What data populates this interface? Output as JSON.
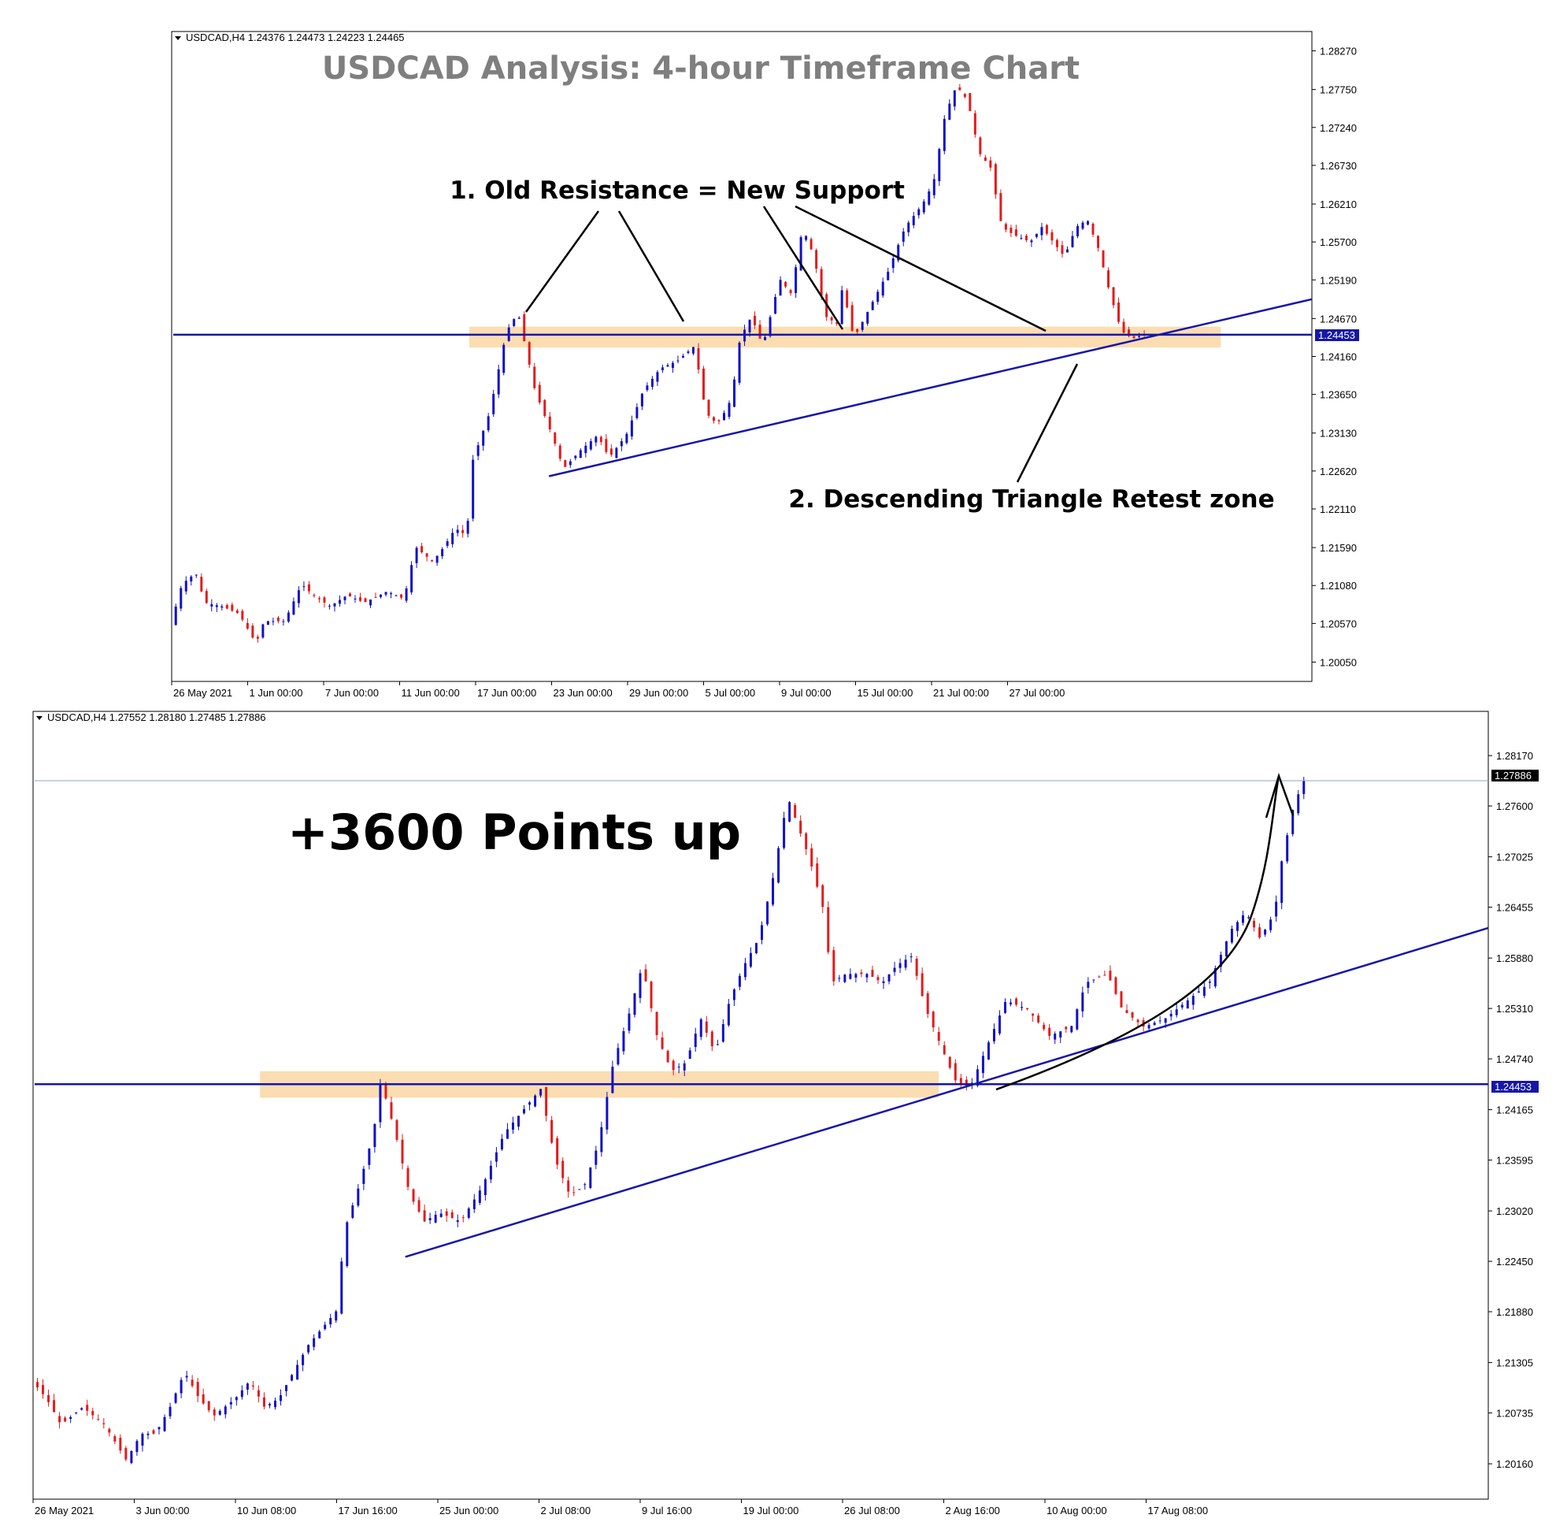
{
  "chart_data": [
    {
      "type": "candlestick",
      "title": "USDCAD Analysis: 4-hour Timeframe Chart",
      "symbol_header": "USDCAD,H4  1.24376 1.24473 1.24223 1.24465",
      "ylim": [
        1.1979,
        1.2853
      ],
      "yticks": [
        "1.28270",
        "1.27750",
        "1.27240",
        "1.26730",
        "1.26210",
        "1.25700",
        "1.25190",
        "1.24670",
        "1.24160",
        "1.23650",
        "1.23130",
        "1.22620",
        "1.22110",
        "1.21590",
        "1.21080",
        "1.20570",
        "1.20050"
      ],
      "xticks": [
        "26 May 2021",
        "1 Jun 00:00",
        "7 Jun 00:00",
        "11 Jun 00:00",
        "17 Jun 00:00",
        "23 Jun 00:00",
        "29 Jun 00:00",
        "5 Jul 00:00",
        "9 Jul 00:00",
        "15 Jul 00:00",
        "21 Jul 00:00",
        "27 Jul 00:00"
      ],
      "xlim": [
        0,
        1
      ],
      "price_label": "1.24453",
      "horizontal_level": 1.24453,
      "zone": [
        1.2428,
        1.2456
      ],
      "trendline": {
        "x": [
          0.33,
          1.0
        ],
        "y": [
          1.2255,
          1.2493
        ]
      },
      "annotations": [
        "1. Old Resistance = New Support",
        "2. Descending Triangle Retest zone"
      ],
      "close_path": [
        [
          0.0,
          1.2055
        ],
        [
          0.01,
          1.211
        ],
        [
          0.022,
          1.2125
        ],
        [
          0.03,
          1.2085
        ],
        [
          0.045,
          1.208
        ],
        [
          0.06,
          1.207
        ],
        [
          0.075,
          1.203
        ],
        [
          0.082,
          1.206
        ],
        [
          0.1,
          1.206
        ],
        [
          0.115,
          1.211
        ],
        [
          0.125,
          1.2095
        ],
        [
          0.14,
          1.208
        ],
        [
          0.155,
          1.2095
        ],
        [
          0.17,
          1.2085
        ],
        [
          0.19,
          1.21
        ],
        [
          0.205,
          1.209
        ],
        [
          0.215,
          1.216
        ],
        [
          0.23,
          1.214
        ],
        [
          0.24,
          1.216
        ],
        [
          0.25,
          1.2185
        ],
        [
          0.26,
          1.2175
        ],
        [
          0.265,
          1.2275
        ],
        [
          0.28,
          1.234
        ],
        [
          0.295,
          1.245
        ],
        [
          0.305,
          1.2475
        ],
        [
          0.32,
          1.237
        ],
        [
          0.335,
          1.231
        ],
        [
          0.345,
          1.2265
        ],
        [
          0.36,
          1.229
        ],
        [
          0.375,
          1.231
        ],
        [
          0.385,
          1.228
        ],
        [
          0.4,
          1.231
        ],
        [
          0.415,
          1.237
        ],
        [
          0.43,
          1.24
        ],
        [
          0.445,
          1.241
        ],
        [
          0.46,
          1.243
        ],
        [
          0.47,
          1.234
        ],
        [
          0.48,
          1.2325
        ],
        [
          0.49,
          1.235
        ],
        [
          0.495,
          1.2385
        ],
        [
          0.5,
          1.244
        ],
        [
          0.51,
          1.247
        ],
        [
          0.52,
          1.243
        ],
        [
          0.535,
          1.252
        ],
        [
          0.545,
          1.25
        ],
        [
          0.555,
          1.259
        ],
        [
          0.565,
          1.255
        ],
        [
          0.575,
          1.247
        ],
        [
          0.585,
          1.246
        ],
        [
          0.59,
          1.251
        ],
        [
          0.6,
          1.244
        ],
        [
          0.61,
          1.247
        ],
        [
          0.62,
          1.25
        ],
        [
          0.63,
          1.253
        ],
        [
          0.645,
          1.259
        ],
        [
          0.66,
          1.262
        ],
        [
          0.67,
          1.265
        ],
        [
          0.68,
          1.274
        ],
        [
          0.69,
          1.278
        ],
        [
          0.7,
          1.276
        ],
        [
          0.71,
          1.269
        ],
        [
          0.72,
          1.267
        ],
        [
          0.73,
          1.259
        ],
        [
          0.74,
          1.258
        ],
        [
          0.755,
          1.257
        ],
        [
          0.765,
          1.259
        ],
        [
          0.775,
          1.257
        ],
        [
          0.785,
          1.255
        ],
        [
          0.795,
          1.259
        ],
        [
          0.805,
          1.26
        ],
        [
          0.815,
          1.256
        ],
        [
          0.825,
          1.25
        ],
        [
          0.835,
          1.245
        ],
        [
          0.845,
          1.244
        ],
        [
          0.855,
          1.2446
        ]
      ]
    },
    {
      "type": "candlestick",
      "title": "",
      "symbol_header": "USDCAD,H4  1.27552 1.28180 1.27485 1.27886",
      "ylim": [
        1.1976,
        1.2867
      ],
      "yticks": [
        "1.28170",
        "1.27600",
        "1.27025",
        "1.26455",
        "1.25880",
        "1.25310",
        "1.24740",
        "1.24165",
        "1.23595",
        "1.23020",
        "1.22450",
        "1.21880",
        "1.21305",
        "1.20735",
        "1.20160"
      ],
      "xticks": [
        "26 May 2021",
        "3 Jun 00:00",
        "10 Jun 08:00",
        "17 Jun 16:00",
        "25 Jun 00:00",
        "2 Jul 08:00",
        "9 Jul 16:00",
        "19 Jul 00:00",
        "26 Jul 08:00",
        "2 Aug 16:00",
        "10 Aug 00:00",
        "17 Aug 08:00"
      ],
      "xlim": [
        0,
        1
      ],
      "price_label": "1.27886",
      "current_price": 1.27886,
      "support_label": "1.24453",
      "horizontal_level": 1.24453,
      "zone": [
        1.243,
        1.246
      ],
      "trendline": {
        "x": [
          0.255,
          1.0
        ],
        "y": [
          1.225,
          1.2622
        ]
      },
      "annotations": [
        "+3600 Points up"
      ],
      "close_path": [
        [
          0.0,
          1.211
        ],
        [
          0.01,
          1.209
        ],
        [
          0.02,
          1.206
        ],
        [
          0.035,
          1.208
        ],
        [
          0.05,
          1.206
        ],
        [
          0.065,
          1.202
        ],
        [
          0.075,
          1.205
        ],
        [
          0.085,
          1.205
        ],
        [
          0.095,
          1.208
        ],
        [
          0.105,
          1.212
        ],
        [
          0.115,
          1.209
        ],
        [
          0.125,
          1.207
        ],
        [
          0.14,
          1.209
        ],
        [
          0.15,
          1.211
        ],
        [
          0.16,
          1.208
        ],
        [
          0.17,
          1.209
        ],
        [
          0.18,
          1.212
        ],
        [
          0.19,
          1.215
        ],
        [
          0.2,
          1.217
        ],
        [
          0.21,
          1.219
        ],
        [
          0.215,
          1.228
        ],
        [
          0.225,
          1.233
        ],
        [
          0.235,
          1.239
        ],
        [
          0.24,
          1.245
        ],
        [
          0.25,
          1.239
        ],
        [
          0.26,
          1.232
        ],
        [
          0.27,
          1.229
        ],
        [
          0.28,
          1.23
        ],
        [
          0.295,
          1.229
        ],
        [
          0.31,
          1.233
        ],
        [
          0.325,
          1.239
        ],
        [
          0.34,
          1.242
        ],
        [
          0.35,
          1.244
        ],
        [
          0.36,
          1.236
        ],
        [
          0.37,
          1.232
        ],
        [
          0.38,
          1.233
        ],
        [
          0.39,
          1.238
        ],
        [
          0.4,
          1.247
        ],
        [
          0.41,
          1.252
        ],
        [
          0.42,
          1.258
        ],
        [
          0.43,
          1.25
        ],
        [
          0.44,
          1.246
        ],
        [
          0.45,
          1.247
        ],
        [
          0.46,
          1.252
        ],
        [
          0.47,
          1.248
        ],
        [
          0.48,
          1.254
        ],
        [
          0.49,
          1.258
        ],
        [
          0.5,
          1.261
        ],
        [
          0.51,
          1.268
        ],
        [
          0.52,
          1.277
        ],
        [
          0.535,
          1.27
        ],
        [
          0.545,
          1.264
        ],
        [
          0.55,
          1.256
        ],
        [
          0.56,
          1.257
        ],
        [
          0.575,
          1.257
        ],
        [
          0.585,
          1.256
        ],
        [
          0.595,
          1.258
        ],
        [
          0.605,
          1.259
        ],
        [
          0.615,
          1.253
        ],
        [
          0.625,
          1.249
        ],
        [
          0.635,
          1.245
        ],
        [
          0.645,
          1.244
        ],
        [
          0.66,
          1.25
        ],
        [
          0.67,
          1.254
        ],
        [
          0.685,
          1.253
        ],
        [
          0.7,
          1.25
        ],
        [
          0.715,
          1.251
        ],
        [
          0.725,
          1.256
        ],
        [
          0.74,
          1.257
        ],
        [
          0.75,
          1.253
        ],
        [
          0.765,
          1.251
        ],
        [
          0.78,
          1.252
        ],
        [
          0.795,
          1.254
        ],
        [
          0.81,
          1.256
        ],
        [
          0.825,
          1.262
        ],
        [
          0.835,
          1.264
        ],
        [
          0.845,
          1.261
        ],
        [
          0.855,
          1.264
        ],
        [
          0.86,
          1.27
        ],
        [
          0.868,
          1.276
        ],
        [
          0.875,
          1.2789
        ]
      ]
    }
  ]
}
